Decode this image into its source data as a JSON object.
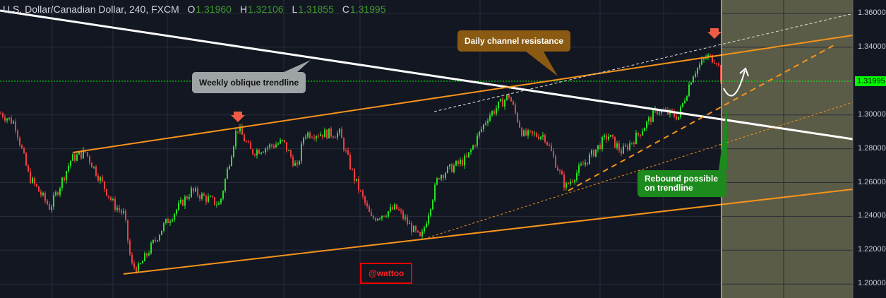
{
  "header": {
    "symbol": "U.S. Dollar/Canadian Dollar, 240, FXCM",
    "open_label": "O",
    "open": "1.31960",
    "high_label": "H",
    "high": "1.32106",
    "low_label": "L",
    "low": "1.31855",
    "close_label": "C",
    "close": "1.31995"
  },
  "annotations": {
    "weekly": "Weekly oblique trendline",
    "daily": "Daily channel resistance",
    "rebound": "Rebound possible on trendline",
    "author": "@wattoo"
  },
  "colors": {
    "background": "#131722",
    "up": "#26e126",
    "down": "#ef3f3f",
    "channel": "#f7931a",
    "trendline": "#ffffff",
    "future_zone": "#5b5c47",
    "last_price": "#00ff00"
  },
  "chart_data": {
    "type": "candlestick",
    "title": "U.S. Dollar/Canadian Dollar, 240, FXCM",
    "ylim": [
      1.195,
      1.368
    ],
    "y_ticks": [
      "1.36000",
      "1.34000",
      "1.30000",
      "1.28000",
      "1.26000",
      "1.24000",
      "1.22000",
      "1.20000"
    ],
    "last_price": "1.31995",
    "grid": true,
    "price_path": [
      1.301,
      1.295,
      1.2635,
      1.245,
      1.274,
      1.278,
      1.247,
      1.241,
      1.211,
      1.209,
      1.234,
      1.255,
      1.247,
      1.293,
      1.278,
      1.284,
      1.268,
      1.289,
      1.289,
      1.2635,
      1.2385,
      1.245,
      1.226,
      1.264,
      1.274,
      1.299,
      1.3116,
      1.288,
      1.288,
      1.2573,
      1.268,
      1.288,
      1.278,
      1.287,
      1.303,
      1.299,
      1.324,
      1.3345,
      1.3325,
      1.3178
    ]
  }
}
